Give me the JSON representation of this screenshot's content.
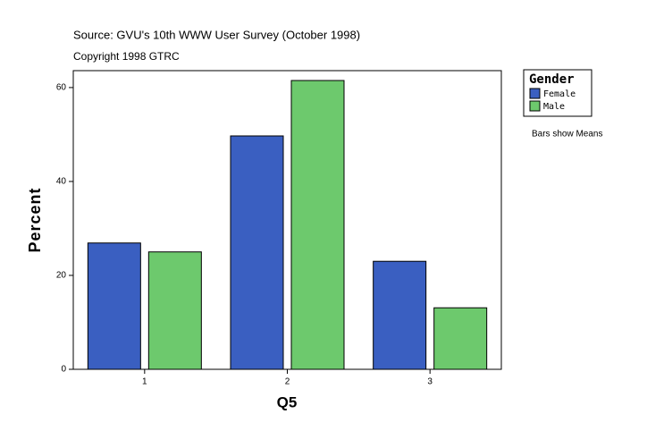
{
  "chart_data": {
    "type": "bar",
    "title": "Source: GVU's 10th WWW User Survey (October 1998)",
    "subtitle": "Copyright 1998 GTRC",
    "annotation": "Bars show Means",
    "x_label": "Q5",
    "y_label": "Percent",
    "legend_title": "Gender",
    "categories": [
      "1",
      "2",
      "3"
    ],
    "series": [
      {
        "name": "Female",
        "color": "#3a5fc1",
        "values": [
          26.9,
          49.7,
          23.0
        ]
      },
      {
        "name": "Male",
        "color": "#6dc96d",
        "values": [
          25.0,
          61.5,
          13.1
        ]
      }
    ],
    "ylim": [
      0,
      63.6
    ],
    "yticks": [
      0,
      20,
      40,
      60
    ]
  }
}
